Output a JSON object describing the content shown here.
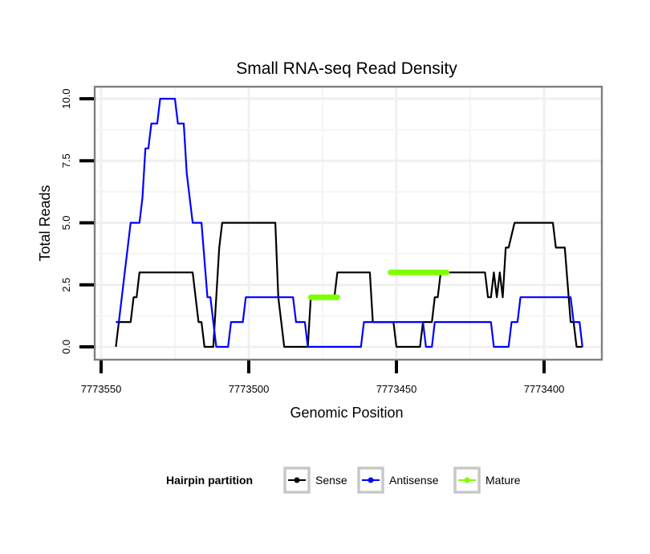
{
  "chart_data": {
    "type": "line",
    "title": "Small RNA-seq Read Density",
    "xlabel": "Genomic Position",
    "ylabel": "Total Reads",
    "x_reversed": true,
    "xlim": [
      7773553,
      7773380
    ],
    "ylim": [
      -0.4,
      10.6
    ],
    "x_ticks": [
      7773550,
      7773500,
      7773450,
      7773400
    ],
    "x_tick_labels": [
      "7773550",
      "7773500",
      "7773450",
      "7773400"
    ],
    "y_ticks": [
      0,
      2.5,
      5,
      7.5,
      10
    ],
    "y_tick_labels": [
      "0.0",
      "2.5",
      "5.0",
      "7.5",
      "10.0"
    ],
    "grid": true,
    "legend": {
      "title": "Hairpin partition",
      "position": "bottom",
      "entries": [
        {
          "name": "Sense",
          "color": "#000000"
        },
        {
          "name": "Antisense",
          "color": "#0000ff"
        },
        {
          "name": "Mature",
          "color": "#7fff00"
        }
      ]
    },
    "series": [
      {
        "name": "Sense",
        "color": "#000000",
        "points": [
          [
            7773545,
            0
          ],
          [
            7773544,
            1
          ],
          [
            7773540,
            1
          ],
          [
            7773539,
            2
          ],
          [
            7773538,
            2
          ],
          [
            7773537,
            3
          ],
          [
            7773519,
            3
          ],
          [
            7773517,
            1
          ],
          [
            7773516,
            1
          ],
          [
            7773515,
            0
          ],
          [
            7773512,
            0
          ],
          [
            7773510,
            4
          ],
          [
            7773509,
            5
          ],
          [
            7773491,
            5
          ],
          [
            7773490,
            2
          ],
          [
            7773488,
            0
          ],
          [
            7773480,
            0
          ],
          [
            7773479,
            2
          ],
          [
            7773471,
            2
          ],
          [
            7773470,
            3
          ],
          [
            7773459,
            3
          ],
          [
            7773458,
            1
          ],
          [
            7773451,
            1
          ],
          [
            7773450,
            0
          ],
          [
            7773442,
            0
          ],
          [
            7773441,
            1
          ],
          [
            7773438,
            1
          ],
          [
            7773437,
            2
          ],
          [
            7773436,
            2
          ],
          [
            7773435,
            3
          ],
          [
            7773420,
            3
          ],
          [
            7773419,
            2
          ],
          [
            7773418,
            2
          ],
          [
            7773417,
            3
          ],
          [
            7773416,
            2
          ],
          [
            7773415,
            3
          ],
          [
            7773414,
            2
          ],
          [
            7773413,
            4
          ],
          [
            7773412,
            4
          ],
          [
            7773410,
            5
          ],
          [
            7773397,
            5
          ],
          [
            7773396,
            4
          ],
          [
            7773393,
            4
          ],
          [
            7773391,
            1
          ],
          [
            7773390,
            1
          ],
          [
            7773389,
            0
          ],
          [
            7773387,
            0
          ]
        ]
      },
      {
        "name": "Antisense",
        "color": "#0000ff",
        "points": [
          [
            7773545,
            1
          ],
          [
            7773544,
            1
          ],
          [
            7773540,
            5
          ],
          [
            7773537,
            5
          ],
          [
            7773536,
            6
          ],
          [
            7773535,
            8
          ],
          [
            7773534,
            8
          ],
          [
            7773533,
            9
          ],
          [
            7773531,
            9
          ],
          [
            7773530,
            10
          ],
          [
            7773525,
            10
          ],
          [
            7773524,
            9
          ],
          [
            7773522,
            9
          ],
          [
            7773521,
            7
          ],
          [
            7773519,
            5
          ],
          [
            7773516,
            5
          ],
          [
            7773514,
            2
          ],
          [
            7773513,
            2
          ],
          [
            7773512,
            1
          ],
          [
            7773511,
            0
          ],
          [
            7773507,
            0
          ],
          [
            7773506,
            1
          ],
          [
            7773502,
            1
          ],
          [
            7773501,
            2
          ],
          [
            7773485,
            2
          ],
          [
            7773484,
            1
          ],
          [
            7773481,
            1
          ],
          [
            7773480,
            0
          ],
          [
            7773462,
            0
          ],
          [
            7773461,
            1
          ],
          [
            7773441,
            1
          ],
          [
            7773440,
            0
          ],
          [
            7773438,
            0
          ],
          [
            7773437,
            1
          ],
          [
            7773418,
            1
          ],
          [
            7773417,
            0
          ],
          [
            7773412,
            0
          ],
          [
            7773411,
            1
          ],
          [
            7773409,
            1
          ],
          [
            7773408,
            2
          ],
          [
            7773391,
            2
          ],
          [
            7773390,
            1
          ],
          [
            7773388,
            1
          ],
          [
            7773387,
            0
          ]
        ]
      },
      {
        "name": "Mature",
        "color": "#7fff00",
        "points": [
          [
            7773479,
            2
          ],
          [
            7773470,
            2
          ]
        ]
      },
      {
        "name": "Mature",
        "color": "#7fff00",
        "points": [
          [
            7773452,
            3
          ],
          [
            7773433,
            3
          ]
        ]
      }
    ]
  }
}
